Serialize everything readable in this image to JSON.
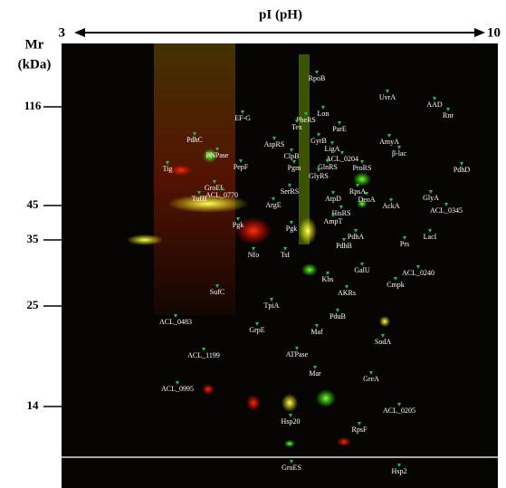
{
  "axis": {
    "title": "pI (pH)",
    "start": "3",
    "end": "10"
  },
  "mr_axis": {
    "title": "Mr",
    "unit": "(kDa)",
    "ticks": [
      "116",
      "45",
      "35",
      "25",
      "14"
    ]
  },
  "spots": [
    "RpoB",
    "UvrA",
    "AAD",
    "Lon",
    "Rnr",
    "EF-G",
    "PheRS",
    "Tex",
    "ParE",
    "PdhC",
    "GyrB",
    "AspRS",
    "AmyA",
    "ClpB",
    "LigA",
    "PNPase",
    "ACL_0204",
    "β-lac",
    "GlnRS",
    "ProRS",
    "PepF",
    "Pgm",
    "Tig",
    "PdhD",
    "GlyRS",
    "GroEL",
    "SerRS",
    "RpsA",
    "ACL_0770",
    "DeoA",
    "AtpD",
    "GlyA",
    "TufB",
    "ArgE",
    "AckA",
    "ACL_0345",
    "HisRS",
    "AmpT",
    "Pgk",
    "Pgk",
    "PdhA",
    "LacI",
    "PdhB",
    "Prs",
    "Nfo",
    "Tsf",
    "GalU",
    "ACL_0240",
    "Kbs",
    "Cmpk",
    "SufC",
    "AKRs",
    "TpiA",
    "PduB",
    "ACL_0483",
    "GrpE",
    "Maf",
    "SodA",
    "ACL_1199",
    "ATPase",
    "Mar",
    "GreA",
    "ACL_0995",
    "Hsp20",
    "ACL_0205",
    "RpsF",
    "GroES",
    "Hsp2"
  ]
}
